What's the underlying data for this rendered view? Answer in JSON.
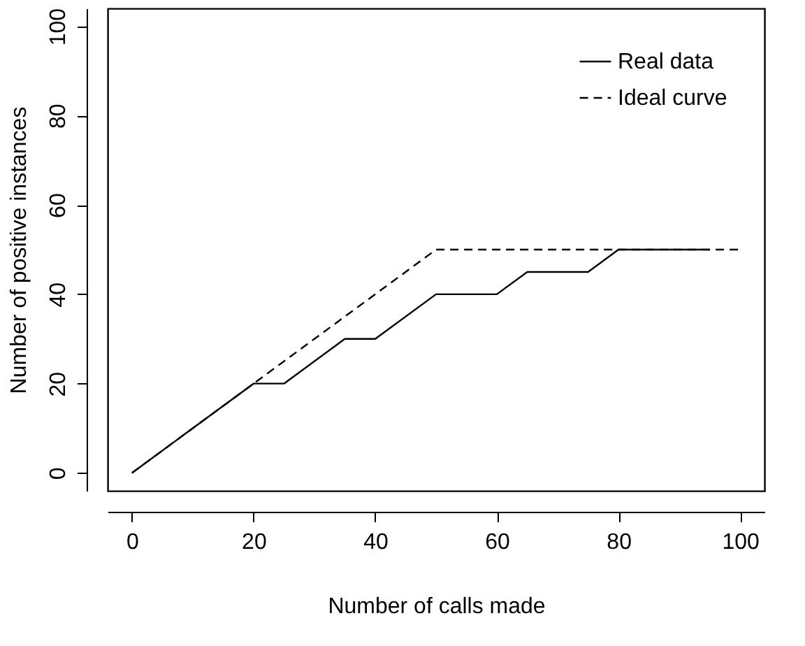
{
  "chart_data": {
    "type": "line",
    "xlabel": "Number of calls made",
    "ylabel": "Number of positive instances",
    "xlim": [
      -4,
      104
    ],
    "ylim": [
      -4,
      104
    ],
    "xticks": [
      0,
      20,
      40,
      60,
      80,
      100
    ],
    "yticks": [
      0,
      20,
      40,
      60,
      80,
      100
    ],
    "grid": false,
    "legend": "top right",
    "marker": "none",
    "series": [
      {
        "name": "Real data",
        "color": "#000000",
        "line_style": "solid",
        "x": [
          0,
          20,
          25,
          35,
          40,
          50,
          60,
          65,
          75,
          80,
          95
        ],
        "values": [
          0,
          20,
          20,
          30,
          30,
          40,
          40,
          45,
          45,
          50,
          50
        ]
      },
      {
        "name": "Ideal curve",
        "color": "#000000",
        "line_style": "dashed",
        "x": [
          0,
          50,
          100
        ],
        "values": [
          0,
          50,
          50
        ]
      }
    ]
  }
}
